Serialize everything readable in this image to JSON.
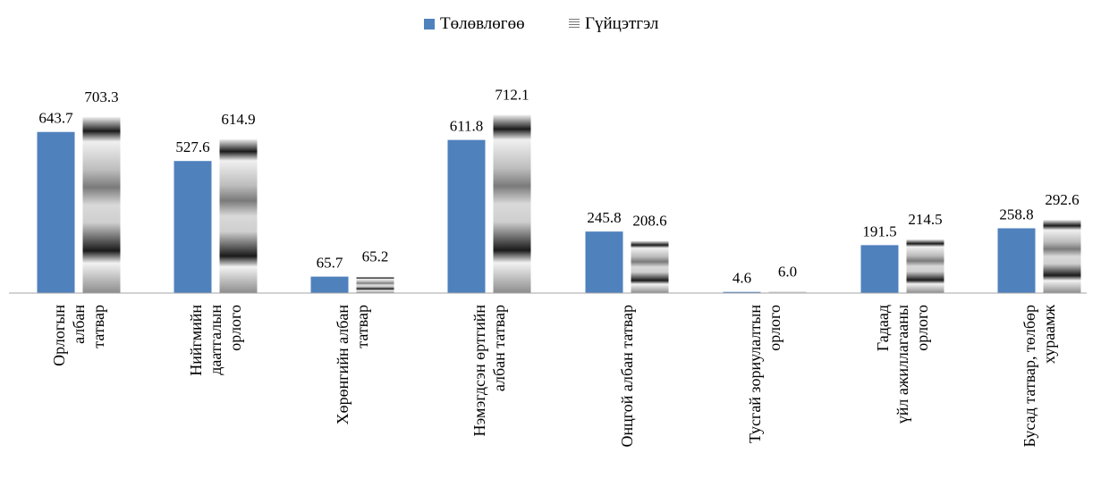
{
  "chart_data": {
    "type": "bar",
    "categories": [
      [
        "Орлогын",
        "албан",
        "татвар"
      ],
      [
        "Нийгмийн",
        "даатгалын",
        "орлого"
      ],
      [
        "Хөрөнгийн албан",
        "татвар"
      ],
      [
        "Нэмэгдсэн өртгийн",
        "албан татвар"
      ],
      [
        "Онцгой албан татвар"
      ],
      [
        "Тусгай зориулалтын",
        "орлого"
      ],
      [
        "Гадаад",
        "үйл ажиллагааны",
        "орлого"
      ],
      [
        "Бусад татвар, төлбөр",
        "хураамж"
      ]
    ],
    "series": [
      {
        "name": "Төлөвлөгөө",
        "values": [
          643.7,
          527.6,
          65.7,
          611.8,
          245.8,
          4.6,
          191.5,
          258.8
        ]
      },
      {
        "name": "Гүйцэтгэл",
        "values": [
          703.3,
          614.9,
          65.2,
          712.1,
          208.6,
          6.0,
          214.5,
          292.6
        ]
      }
    ],
    "value_labels": {
      "plan": [
        "643.7",
        "527.6",
        "65.7",
        "611.8",
        "245.8",
        "4.6",
        "191.5",
        "258.8"
      ],
      "actual": [
        "703.3",
        "614.9",
        "65.2",
        "712.1",
        "208.6",
        "6.0",
        "214.5",
        "292.6"
      ]
    },
    "ylim": [
      0,
      750
    ],
    "legend_position": "top-center",
    "grid": false
  },
  "colors": {
    "plan": "#4f81bd",
    "actual_dark": "#1a1a1a",
    "actual_light": "#d9d9d9"
  }
}
